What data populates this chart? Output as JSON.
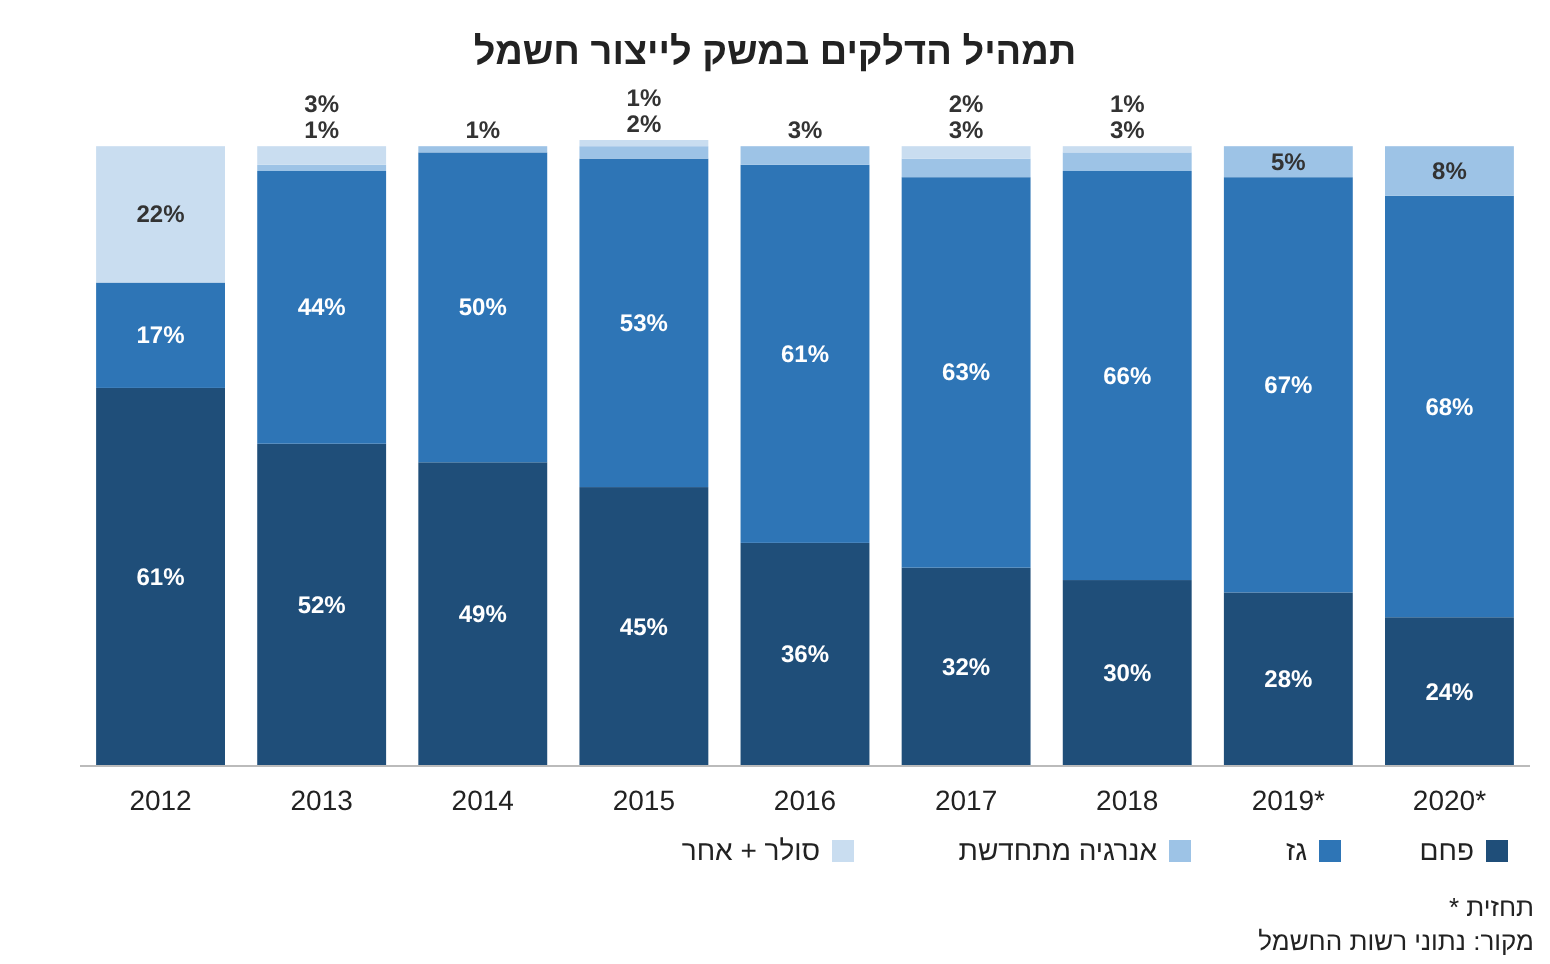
{
  "chart_data": {
    "type": "bar",
    "stacked": true,
    "title": "תמהיל הדלקים במשק לייצור חשמל",
    "categories": [
      "2012",
      "2013",
      "2014",
      "2015",
      "2016",
      "2017",
      "2018",
      "2019*",
      "2020*"
    ],
    "legend": "bottom",
    "series": [
      {
        "name": "פחם",
        "color": "#1f4e79",
        "values": [
          61,
          52,
          49,
          45,
          36,
          32,
          30,
          28,
          24
        ],
        "value_labels": [
          "61%",
          "52%",
          "49%",
          "45%",
          "36%",
          "32%",
          "30%",
          "28%",
          "24%"
        ]
      },
      {
        "name": "גז",
        "color": "#2e75b6",
        "values": [
          17,
          44,
          50,
          53,
          61,
          63,
          66,
          67,
          68
        ],
        "value_labels": [
          "17%",
          "44%",
          "50%",
          "53%",
          "61%",
          "63%",
          "66%",
          "67%",
          "68%"
        ]
      },
      {
        "name": "אנרגיה מתחדשת",
        "color": "#9dc3e6",
        "values": [
          null,
          1,
          1,
          2,
          3,
          3,
          3,
          5,
          8
        ],
        "value_labels": [
          null,
          "1%",
          "1%",
          "2%",
          "3%",
          "3%",
          "3%",
          "5%",
          "8%"
        ]
      },
      {
        "name": "סולר + אחר",
        "color": "#c9ddf0",
        "values": [
          22,
          3,
          null,
          1,
          null,
          2,
          1,
          null,
          null
        ],
        "value_labels": [
          "22%",
          "3%",
          null,
          "1%",
          null,
          "2%",
          "1%",
          null,
          null
        ]
      }
    ],
    "annotations": [
      "* תחזית",
      "מקור: נתוני רשות החשמל"
    ]
  }
}
